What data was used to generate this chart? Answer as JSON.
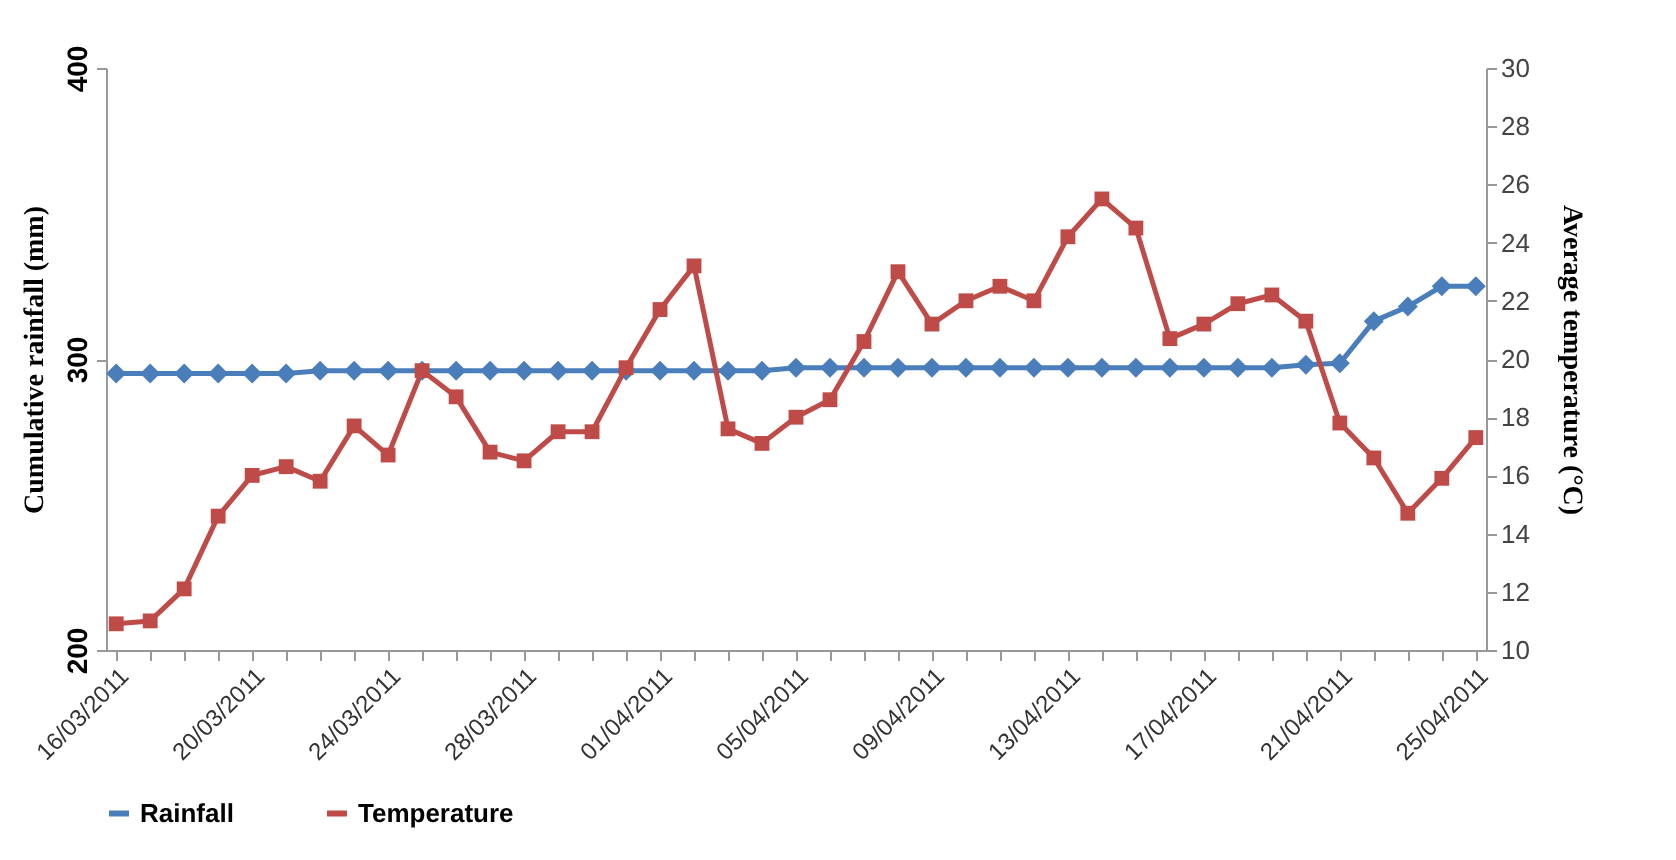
{
  "chart_data": {
    "type": "line",
    "categories": [
      "16/03/2011",
      null,
      null,
      null,
      "20/03/2011",
      null,
      null,
      null,
      "24/03/2011",
      null,
      null,
      null,
      "28/03/2011",
      null,
      null,
      null,
      "01/04/2011",
      null,
      null,
      null,
      "05/04/2011",
      null,
      null,
      null,
      "09/04/2011",
      null,
      null,
      null,
      "13/04/2011",
      null,
      null,
      null,
      "17/04/2011",
      null,
      null,
      null,
      "21/04/2011",
      null,
      null,
      null,
      "25/04/2011"
    ],
    "series": [
      {
        "name": "Rainfall",
        "color": "#4a7ebb",
        "marker": "diamond",
        "values": [
          295,
          295,
          295,
          295,
          295,
          295,
          296,
          296,
          296,
          296,
          296,
          296,
          296,
          296,
          296,
          296,
          296,
          296,
          296,
          296,
          297,
          297,
          297,
          297,
          297,
          297,
          297,
          297,
          297,
          297,
          297,
          297,
          297,
          297,
          297,
          298,
          298.5,
          313,
          318,
          325,
          325
        ]
      },
      {
        "name": "Temperature",
        "color": "#be4b48",
        "marker": "square",
        "axis": "y2",
        "values": [
          10.9,
          11.0,
          12.1,
          14.6,
          16.0,
          16.3,
          15.8,
          17.7,
          16.7,
          19.6,
          18.7,
          16.8,
          16.5,
          17.5,
          17.5,
          19.7,
          21.7,
          23.2,
          17.6,
          17.1,
          18.0,
          18.6,
          20.6,
          23.0,
          21.2,
          22.0,
          22.5,
          22.0,
          24.2,
          25.5,
          24.5,
          20.7,
          21.2,
          21.9,
          22.2,
          21.3,
          17.8,
          16.6,
          14.7,
          15.9,
          17.3
        ]
      }
    ],
    "ylabel": "Cumulative rainfall (mm)",
    "y2label": "Average temperature (°C)",
    "ylim": [
      200,
      400
    ],
    "yticks": [
      200,
      300,
      400
    ],
    "y2lim": [
      10,
      30
    ],
    "y2ticks": [
      10,
      12,
      14,
      16,
      18,
      20,
      22,
      24,
      26,
      28,
      30
    ],
    "legend": "bottom"
  }
}
